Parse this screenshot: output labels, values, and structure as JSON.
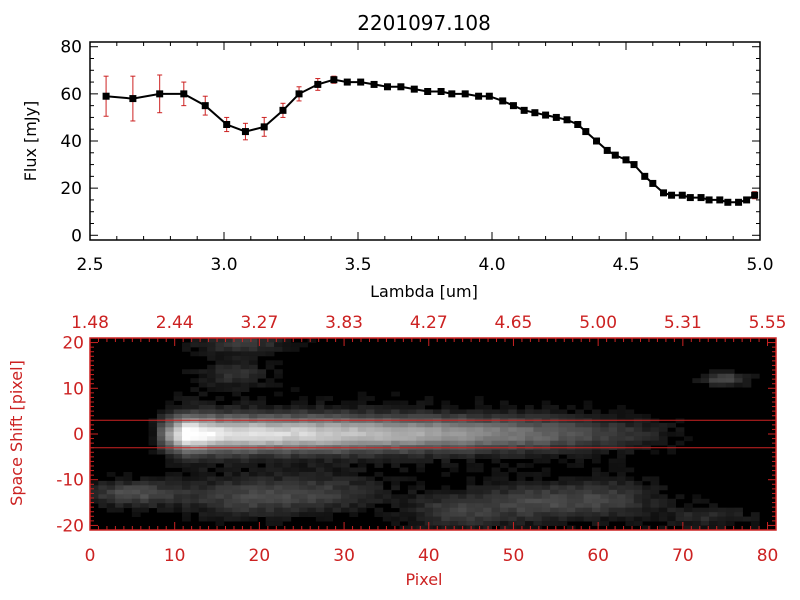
{
  "title": "2201097.108",
  "chart_data": [
    {
      "type": "line",
      "xlabel": "Lambda [um]",
      "ylabel": "Flux [mJy]",
      "xlim": [
        2.5,
        5.0
      ],
      "ylim": [
        -2,
        82
      ],
      "x_ticks": [
        "2.5",
        "3.0",
        "3.5",
        "4.0",
        "4.5",
        "5.0"
      ],
      "y_ticks": [
        "0",
        "20",
        "40",
        "60",
        "80"
      ],
      "grid": false,
      "line_color": "#000000",
      "marker_color": "#000000",
      "errorbar_color": "#cc2222",
      "series": [
        {
          "x": [
            2.56,
            2.66,
            2.76,
            2.85,
            2.93,
            3.01,
            3.08,
            3.15,
            3.22,
            3.28,
            3.35,
            3.41,
            3.46,
            3.51,
            3.56,
            3.61,
            3.66,
            3.71,
            3.76,
            3.81,
            3.85,
            3.9,
            3.95,
            3.99,
            4.04,
            4.08,
            4.12,
            4.16,
            4.2,
            4.24,
            4.28,
            4.32,
            4.35,
            4.39,
            4.43,
            4.46,
            4.5,
            4.53,
            4.57,
            4.6,
            4.64,
            4.67,
            4.71,
            4.74,
            4.78,
            4.81,
            4.85,
            4.88,
            4.92,
            4.95,
            4.98
          ],
          "y": [
            59,
            58,
            60,
            60,
            55,
            47,
            44,
            46,
            53,
            60,
            64,
            66,
            65,
            65,
            64,
            63,
            63,
            62,
            61,
            61,
            60,
            60,
            59,
            59,
            57,
            55,
            53,
            52,
            51,
            50,
            49,
            47,
            44,
            40,
            36,
            34,
            32,
            30,
            25,
            22,
            18,
            17,
            17,
            16,
            16,
            15,
            15,
            14,
            14,
            15,
            17
          ],
          "err": [
            8.5,
            9.5,
            8,
            5,
            4,
            3,
            3.5,
            4,
            3,
            3,
            2.5,
            1.5,
            1,
            1,
            1,
            1,
            1,
            1,
            1,
            1,
            1,
            1,
            1,
            1,
            1,
            1,
            1,
            1,
            1,
            1,
            1,
            1,
            1,
            1,
            1,
            1,
            1,
            1,
            1,
            1,
            1,
            1,
            1,
            1,
            1,
            1,
            1,
            1,
            1,
            1,
            1.5
          ]
        }
      ]
    },
    {
      "type": "heatmap",
      "xlabel": "Pixel",
      "ylabel": "Space Shift [pixel]",
      "xlim": [
        0,
        81
      ],
      "ylim": [
        -21,
        21
      ],
      "x_ticks": [
        "0",
        "10",
        "20",
        "30",
        "40",
        "50",
        "60",
        "70",
        "80"
      ],
      "y_ticks": [
        "-20",
        "-10",
        "0",
        "10",
        "20"
      ],
      "top_axis_ticks": [
        "1.48",
        "2.44",
        "3.27",
        "3.83",
        "4.27",
        "4.65",
        "5.00",
        "5.31",
        "5.55"
      ],
      "axis_color": "#cc2222",
      "colormap": "grayscale",
      "extraction_aperture": [
        -3,
        3
      ],
      "components": [
        {
          "kind": "spectral_trace",
          "center_y": 0,
          "x_start": 7,
          "x_peak": 11.5,
          "x_end": 72,
          "peak": 1.0,
          "sigma_y": 2.6
        },
        {
          "kind": "blob",
          "x": 18,
          "y": 20,
          "amp": 0.22,
          "sx": 4,
          "sy": 2
        },
        {
          "kind": "blob",
          "x": 17,
          "y": 13,
          "amp": 0.18,
          "sx": 3,
          "sy": 2
        },
        {
          "kind": "blob",
          "x": 75,
          "y": 12,
          "amp": 0.3,
          "sx": 2,
          "sy": 1
        },
        {
          "kind": "blob",
          "x": 5,
          "y": -13,
          "amp": 0.3,
          "sx": 4,
          "sy": 2
        },
        {
          "kind": "blob",
          "x": 18,
          "y": -14,
          "amp": 0.24,
          "sx": 5,
          "sy": 3
        },
        {
          "kind": "blob",
          "x": 28,
          "y": -13,
          "amp": 0.2,
          "sx": 5,
          "sy": 3
        },
        {
          "kind": "blob",
          "x": 43,
          "y": -17,
          "amp": 0.22,
          "sx": 4,
          "sy": 3
        },
        {
          "kind": "blob",
          "x": 53,
          "y": -15,
          "amp": 0.26,
          "sx": 5,
          "sy": 3
        },
        {
          "kind": "blob",
          "x": 62,
          "y": -14,
          "amp": 0.2,
          "sx": 4,
          "sy": 3
        },
        {
          "kind": "blob",
          "x": 73,
          "y": -18,
          "amp": 0.16,
          "sx": 4,
          "sy": 2
        }
      ]
    }
  ]
}
